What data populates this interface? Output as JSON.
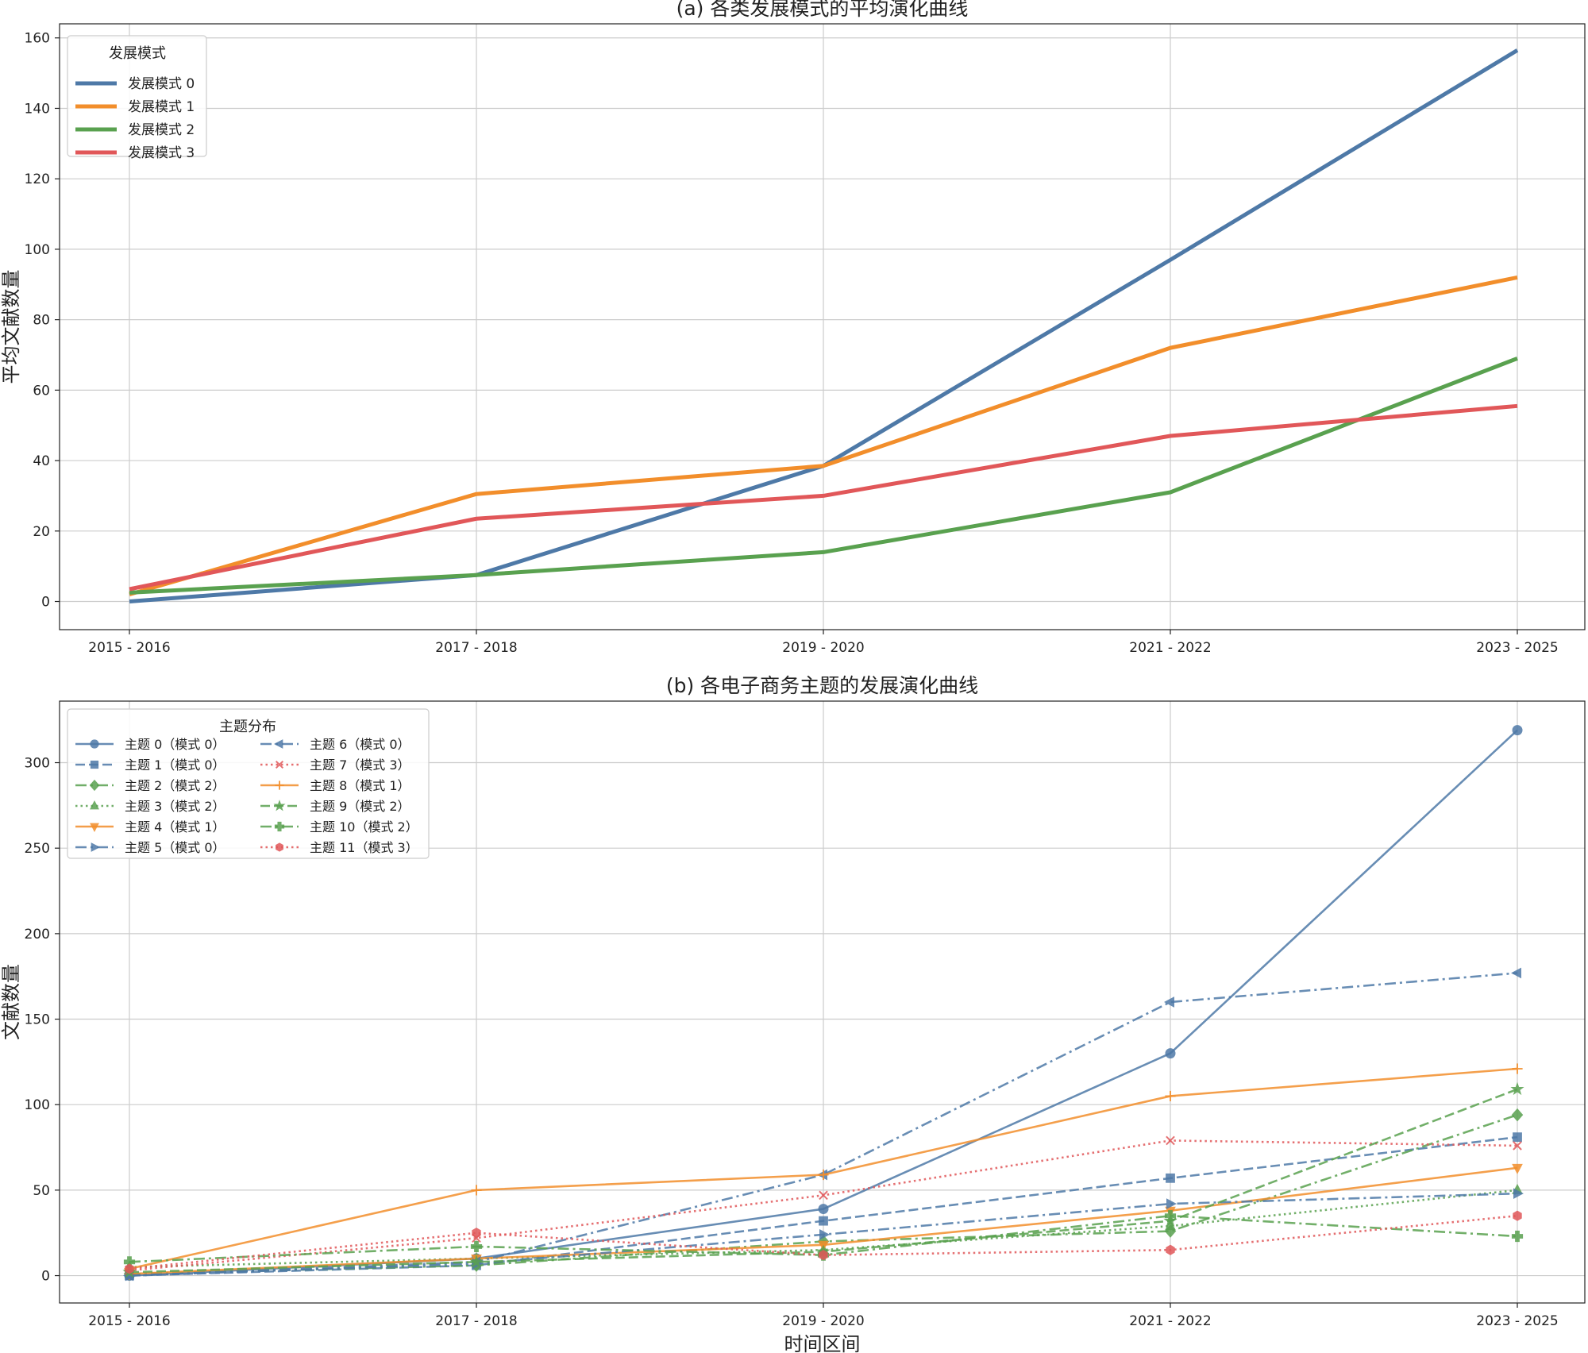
{
  "chart_data": [
    {
      "type": "line",
      "title": "(a) 各类发展模式的平均演化曲线",
      "xlabel": "",
      "ylabel": "平均文献数量",
      "categories": [
        "2015 - 2016",
        "2017 - 2018",
        "2019 - 2020",
        "2021 - 2022",
        "2023 - 2025"
      ],
      "ylim": [
        -8,
        164
      ],
      "yticks": [
        0,
        20,
        40,
        60,
        80,
        100,
        120,
        140,
        160
      ],
      "grid": true,
      "legend": {
        "title": "发展模式",
        "position": "top-left",
        "columns": 1
      },
      "series": [
        {
          "name": "发展模式 0",
          "color": "#4e79a7",
          "dash": "solid",
          "marker": "none",
          "values": [
            0,
            7.5,
            38.5,
            97,
            156.5
          ]
        },
        {
          "name": "发展模式 1",
          "color": "#f28e2b",
          "dash": "solid",
          "marker": "none",
          "values": [
            2,
            30.5,
            38.5,
            72,
            92
          ]
        },
        {
          "name": "发展模式 2",
          "color": "#59a14f",
          "dash": "solid",
          "marker": "none",
          "values": [
            2.5,
            7.5,
            14,
            31,
            69
          ]
        },
        {
          "name": "发展模式 3",
          "color": "#e15759",
          "dash": "solid",
          "marker": "none",
          "values": [
            3.5,
            23.5,
            30,
            47,
            55.5
          ]
        }
      ]
    },
    {
      "type": "line",
      "title": "(b) 各电子商务主题的发展演化曲线",
      "xlabel": "时间区间",
      "ylabel": "文献数量",
      "categories": [
        "2015 - 2016",
        "2017 - 2018",
        "2019 - 2020",
        "2021 - 2022",
        "2023 - 2025"
      ],
      "ylim": [
        -16,
        336
      ],
      "yticks": [
        0,
        50,
        100,
        150,
        200,
        250,
        300
      ],
      "grid": true,
      "legend": {
        "title": "主题分布",
        "position": "top-left",
        "columns": 2
      },
      "series": [
        {
          "name": "主题 0（模式 0）",
          "color": "#4e79a7",
          "dash": "solid",
          "marker": "circle",
          "values": [
            0,
            10,
            39,
            130,
            319
          ]
        },
        {
          "name": "主题 1（模式 0）",
          "color": "#4e79a7",
          "dash": "dashed",
          "marker": "square",
          "values": [
            0,
            6,
            32,
            57,
            81
          ]
        },
        {
          "name": "主题 2（模式 2）",
          "color": "#59a14f",
          "dash": "dashdot",
          "marker": "diamond",
          "values": [
            1,
            6,
            20,
            26,
            94
          ]
        },
        {
          "name": "主题 3（模式 2）",
          "color": "#59a14f",
          "dash": "dotted",
          "marker": "triangle-up",
          "values": [
            5,
            10,
            15,
            29,
            50
          ]
        },
        {
          "name": "主题 4（模式 1）",
          "color": "#f28e2b",
          "dash": "solid",
          "marker": "triangle-down",
          "values": [
            1,
            10,
            18,
            38,
            63
          ]
        },
        {
          "name": "主题 5（模式 0）",
          "color": "#4e79a7",
          "dash": "dashdot",
          "marker": "triangle-right",
          "values": [
            0,
            7,
            24,
            42,
            48
          ]
        },
        {
          "name": "主题 6（模式 0）",
          "color": "#4e79a7",
          "dash": "dashdot",
          "marker": "triangle-left",
          "values": [
            0,
            8,
            59,
            160,
            177
          ]
        },
        {
          "name": "主题 7（模式 3）",
          "color": "#e15759",
          "dash": "dotted",
          "marker": "x",
          "values": [
            3,
            22,
            47,
            79,
            76
          ]
        },
        {
          "name": "主题 8（模式 1）",
          "color": "#f28e2b",
          "dash": "solid",
          "marker": "plus",
          "values": [
            4,
            50,
            59,
            105,
            121
          ]
        },
        {
          "name": "主题 9（模式 2）",
          "color": "#59a14f",
          "dash": "dashed",
          "marker": "star",
          "values": [
            2,
            8,
            14,
            32,
            109
          ]
        },
        {
          "name": "主题 10（模式 2）",
          "color": "#59a14f",
          "dash": "dashdot",
          "marker": "plus-filled",
          "values": [
            8,
            17,
            12,
            35,
            23
          ]
        },
        {
          "name": "主题 11（模式 3）",
          "color": "#e15759",
          "dash": "dotted",
          "marker": "hexagon",
          "values": [
            4,
            25,
            12,
            15,
            35
          ]
        }
      ]
    }
  ]
}
